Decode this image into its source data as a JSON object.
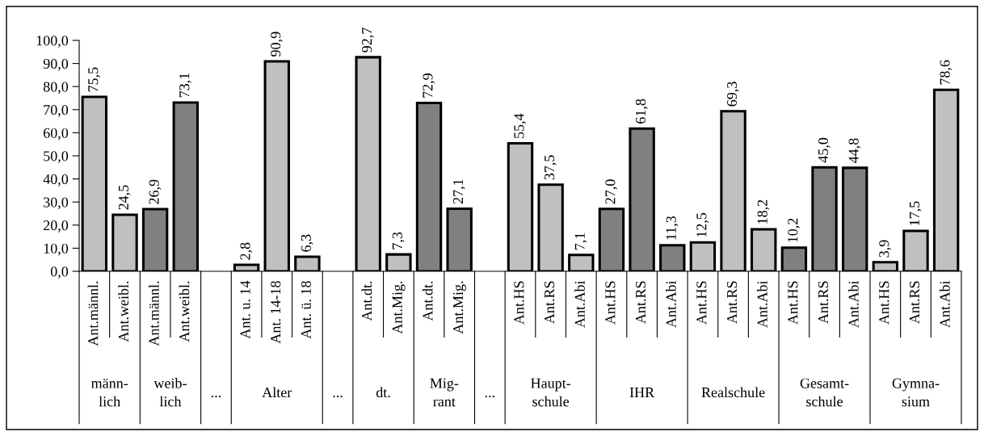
{
  "chart_data": {
    "type": "bar",
    "categories": [
      "Ant.männl.",
      "Ant.weibl.",
      "Ant.männl.",
      "Ant.weibl.",
      null,
      "Ant. u. 14",
      "Ant. 14-18",
      "Ant. ü. 18",
      null,
      "Ant.dt.",
      "Ant.Mig.",
      "Ant.dt.",
      "Ant.Mig.",
      null,
      "Ant.HS",
      "Ant.RS",
      "Ant.Abi",
      "Ant.HS",
      "Ant.RS",
      "Ant.Abi",
      "Ant.HS",
      "Ant.RS",
      "Ant.Abi",
      "Ant.HS",
      "Ant.RS",
      "Ant.Abi",
      "Ant.HS",
      "Ant.RS",
      "Ant.Abi"
    ],
    "values": [
      75.5,
      24.5,
      26.9,
      73.1,
      null,
      2.8,
      90.9,
      6.3,
      null,
      92.7,
      7.3,
      72.9,
      27.1,
      null,
      55.4,
      37.5,
      7.1,
      27.0,
      61.8,
      11.3,
      12.5,
      69.3,
      18.2,
      10.2,
      45.0,
      44.8,
      3.9,
      17.5,
      78.6
    ],
    "colors": [
      "#c0c0c0",
      "#c0c0c0",
      "#808080",
      "#808080",
      null,
      "#c0c0c0",
      "#c0c0c0",
      "#c0c0c0",
      null,
      "#c0c0c0",
      "#c0c0c0",
      "#808080",
      "#808080",
      null,
      "#c0c0c0",
      "#c0c0c0",
      "#c0c0c0",
      "#808080",
      "#808080",
      "#808080",
      "#c0c0c0",
      "#c0c0c0",
      "#c0c0c0",
      "#808080",
      "#808080",
      "#808080",
      "#c0c0c0",
      "#c0c0c0",
      "#c0c0c0"
    ],
    "value_labels": [
      "75,5",
      "24,5",
      "26,9",
      "73,1",
      null,
      "2,8",
      "90,9",
      "6,3",
      null,
      "92,7",
      "7,3",
      "72,9",
      "27,1",
      null,
      "55,4",
      "37,5",
      "7,1",
      "27,0",
      "61,8",
      "11,3",
      "12,5",
      "69,3",
      "18,2",
      "10,2",
      "45,0",
      "44,8",
      "3,9",
      "17,5",
      "78,6"
    ],
    "annotations": [
      "männ-\nlich",
      "weib-\nlich",
      "...",
      "Alter",
      "...",
      "dt.",
      "Mig-\nrant",
      "...",
      "Haupt-\nschule",
      "IHR",
      "Realschule",
      "Gesamt-\nschule",
      "Gymna-\nsium"
    ],
    "ylim": [
      0,
      100
    ],
    "yticks": [
      {
        "value": 0,
        "label": "0,0"
      },
      {
        "value": 10,
        "label": "10,0"
      },
      {
        "value": 20,
        "label": "20,0"
      },
      {
        "value": 30,
        "label": "30,0"
      },
      {
        "value": 40,
        "label": "40,0"
      },
      {
        "value": 50,
        "label": "50,0"
      },
      {
        "value": 60,
        "label": "60,0"
      },
      {
        "value": 70,
        "label": "70,0"
      },
      {
        "value": 80,
        "label": "80,0"
      },
      {
        "value": 90,
        "label": "90,0"
      },
      {
        "value": 100,
        "label": "100,0"
      }
    ],
    "grid": false,
    "legend": false
  }
}
